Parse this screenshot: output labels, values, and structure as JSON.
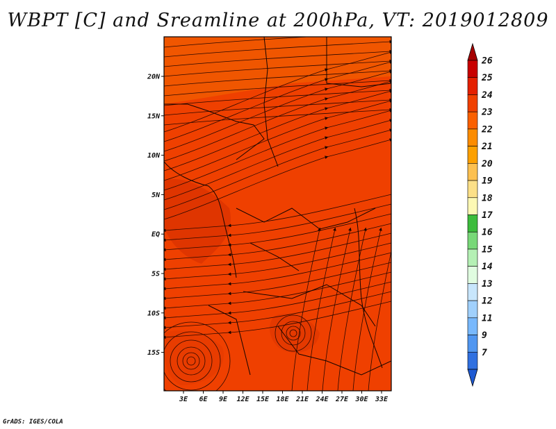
{
  "title": "WBPT [C] and Sreamline at 200hPa, VT: 2019012809",
  "credit": "GrADS: IGES/COLA",
  "map": {
    "lat_labels": [
      "20N",
      "15N",
      "10N",
      "5N",
      "EQ",
      "5S",
      "10S",
      "15S"
    ],
    "lon_labels": [
      "3E",
      "6E",
      "9E",
      "12E",
      "15E",
      "18E",
      "21E",
      "24E",
      "27E",
      "30E",
      "33E"
    ],
    "field_color": "#ef4000"
  },
  "colorbar": {
    "labels": [
      "26",
      "25",
      "24",
      "23",
      "22",
      "21",
      "20",
      "19",
      "18",
      "17",
      "16",
      "15",
      "14",
      "13",
      "12",
      "11",
      "9",
      "7"
    ],
    "colors": [
      "#a50000",
      "#c80000",
      "#e42000",
      "#f04000",
      "#fa6000",
      "#fc8c00",
      "#fca000",
      "#fcc050",
      "#fce088",
      "#fcf8b4",
      "#3cbc3c",
      "#78d878",
      "#b4f0b4",
      "#e0fce0",
      "#c8e6fc",
      "#a0d0fc",
      "#78b8fc",
      "#5096f0",
      "#3070e0",
      "#1e5ad2"
    ]
  }
}
